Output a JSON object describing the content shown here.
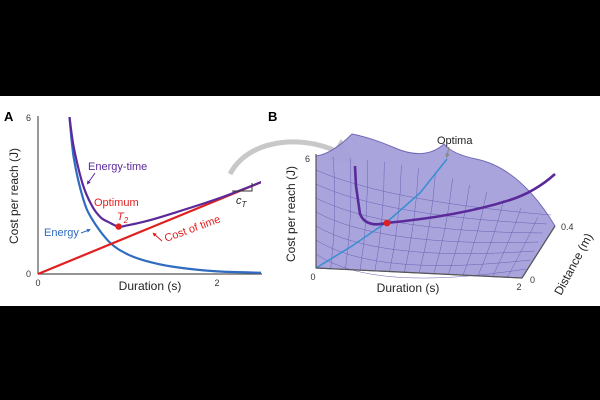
{
  "colors": {
    "energy": "#2f6bc0",
    "energy_time": "#5b2a9a",
    "cost_of_time": "#e02020",
    "optimum": "#e02020",
    "surface_fill": "#a6a0dc",
    "surface_line": "#6a61b3",
    "optima_line": "#3a8fd0",
    "arrow": "#c8c8c8"
  },
  "chart_data": [
    {
      "panel": "A",
      "type": "line",
      "xlabel": "Duration (s)",
      "ylabel": "Cost per reach (J)",
      "xlim": [
        0,
        2.5
      ],
      "ylim": [
        0,
        6
      ],
      "xticks": [
        "0",
        "2"
      ],
      "yticks": [
        "0",
        "6"
      ],
      "series": [
        {
          "name": "Energy",
          "x": [
            0.35,
            0.4,
            0.5,
            0.6,
            0.8,
            1.0,
            1.2,
            1.5,
            2.0,
            2.5
          ],
          "y": [
            6.0,
            4.4,
            2.9,
            2.1,
            1.2,
            0.75,
            0.5,
            0.28,
            0.1,
            0.05
          ]
        },
        {
          "name": "Energy-time",
          "x": [
            0.35,
            0.4,
            0.5,
            0.6,
            0.7,
            0.8,
            0.9,
            1.0,
            1.2,
            1.5,
            2.0,
            2.5
          ],
          "y": [
            6.0,
            4.8,
            3.4,
            2.6,
            2.15,
            1.95,
            1.8,
            1.85,
            2.0,
            2.3,
            2.85,
            3.5
          ]
        },
        {
          "name": "Cost of time",
          "x": [
            0,
            2.5
          ],
          "y": [
            0,
            3.5
          ]
        }
      ],
      "annotations": {
        "optimum_label": "Optimum",
        "t_symbol": "T",
        "t_subscript": "2",
        "ct_symbol": "c",
        "ct_subscript": "T"
      },
      "optimum_point": {
        "x": 0.9,
        "y": 1.8
      }
    },
    {
      "panel": "B",
      "type": "surface",
      "xlabel": "Duration (s)",
      "ylabel": "Cost per reach (J)",
      "zlabel": "Distance (m)",
      "xticks": [
        "0",
        "2"
      ],
      "yticks": [
        "6"
      ],
      "zticks": [
        "0",
        "0.4"
      ],
      "annotations": {
        "optima_label": "Optima"
      }
    }
  ]
}
